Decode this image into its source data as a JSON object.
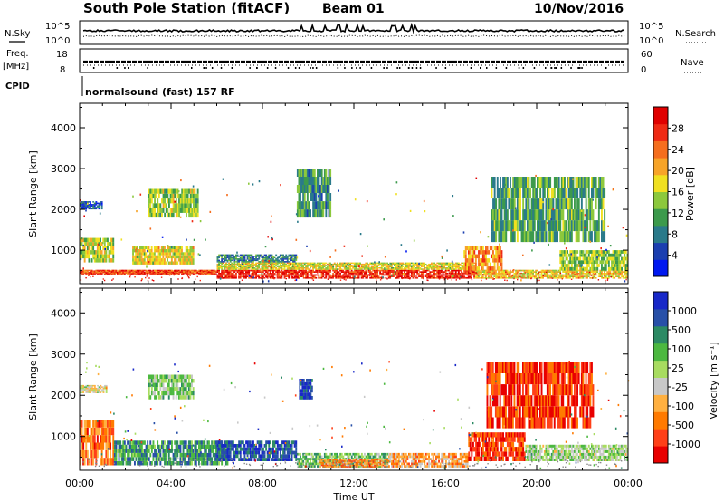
{
  "header": {
    "station": "South Pole Station (fitACF)",
    "beam": "Beam 01",
    "date": "10/Nov/2016"
  },
  "top_panels": {
    "nsky_label": "N.Sky",
    "nsearch_label": "N.Search",
    "freq_label_line1": "Freq.",
    "freq_label_line2": "[MHz]",
    "nave_label": "Nave",
    "cpid_label": "CPID",
    "noise_ticks": [
      "10^5",
      "10^0"
    ],
    "freq_ticks": [
      "18",
      "8"
    ],
    "nave_ticks": [
      "60",
      "0"
    ],
    "cpid_text": "normalsound (fast) 157 RF"
  },
  "colors": {
    "power_scale": [
      "#0018f0",
      "#1b3fb0",
      "#2a7a8a",
      "#3c9a4c",
      "#8cc83c",
      "#f0e020",
      "#f7a428",
      "#f56e1e",
      "#ef2a14",
      "#e00000"
    ],
    "velocity_scale": [
      "#e80000",
      "#ff4018",
      "#ff7a00",
      "#ffb040",
      "#c8c8c8",
      "#a8dc60",
      "#4cb840",
      "#2c8a64",
      "#2850a8",
      "#1828c8"
    ]
  },
  "chart_data": [
    {
      "type": "heatmap",
      "panel": "power",
      "ylabel": "Slant Range [km]",
      "xlabel": "",
      "ylim": [
        180,
        4600
      ],
      "yticks": [
        1000,
        2000,
        3000,
        4000
      ],
      "xlim": [
        "00:00",
        "24:00"
      ],
      "colorbar_label": "Power [dB]",
      "colorbar_ticks": [
        "4",
        "8",
        "12",
        "16",
        "20",
        "24",
        "28"
      ],
      "colorbar_range": [
        0,
        32
      ],
      "regions": [
        {
          "t0": 6.0,
          "t1": 17.3,
          "r0": 300,
          "r1": 520,
          "level": 0.92
        },
        {
          "t0": 0.0,
          "t1": 6.0,
          "r0": 420,
          "r1": 520,
          "level": 0.85
        },
        {
          "t0": 6.0,
          "t1": 17.3,
          "r0": 520,
          "r1": 700,
          "level": 0.55
        },
        {
          "t0": 6.0,
          "t1": 9.5,
          "r0": 700,
          "r1": 900,
          "level": 0.25
        },
        {
          "t0": 17.3,
          "t1": 24.0,
          "r0": 300,
          "r1": 520,
          "level": 0.6
        },
        {
          "t0": 0.0,
          "t1": 1.5,
          "r0": 700,
          "r1": 1300,
          "level": 0.5
        },
        {
          "t0": 0.0,
          "t1": 1.0,
          "r0": 2000,
          "r1": 2200,
          "level": 0.15
        },
        {
          "t0": 2.3,
          "t1": 5.0,
          "r0": 650,
          "r1": 1100,
          "level": 0.55
        },
        {
          "t0": 3.0,
          "t1": 5.2,
          "r0": 1800,
          "r1": 2500,
          "level": 0.45
        },
        {
          "t0": 16.8,
          "t1": 18.5,
          "r0": 500,
          "r1": 1100,
          "level": 0.7
        },
        {
          "t0": 18.0,
          "t1": 23.0,
          "r0": 1200,
          "r1": 2800,
          "level": 0.35
        },
        {
          "t0": 21.0,
          "t1": 24.0,
          "r0": 500,
          "r1": 1000,
          "level": 0.45
        },
        {
          "t0": 9.5,
          "t1": 11.0,
          "r0": 1800,
          "r1": 3000,
          "level": 0.3
        }
      ]
    },
    {
      "type": "heatmap",
      "panel": "velocity",
      "ylabel": "Slant Range [km]",
      "xlabel": "Time UT",
      "ylim": [
        180,
        4600
      ],
      "yticks": [
        1000,
        2000,
        3000,
        4000
      ],
      "xlim": [
        "00:00",
        "24:00"
      ],
      "xticks": [
        "00:00",
        "04:00",
        "08:00",
        "12:00",
        "16:00",
        "20:00",
        "00:00"
      ],
      "colorbar_label": "Velocity [m s⁻¹]",
      "colorbar_ticks": [
        "-1000",
        "-500",
        "-100",
        "-25",
        "25",
        "100",
        "500",
        "1000"
      ],
      "regions": [
        {
          "t0": 0.0,
          "t1": 1.5,
          "r0": 300,
          "r1": 1400,
          "level": 0.2
        },
        {
          "t0": 1.5,
          "t1": 6.5,
          "r0": 300,
          "r1": 900,
          "level": 0.75
        },
        {
          "t0": 6.0,
          "t1": 9.5,
          "r0": 400,
          "r1": 900,
          "level": 0.9
        },
        {
          "t0": 9.5,
          "t1": 13.5,
          "r0": 250,
          "r1": 600,
          "level": 0.65
        },
        {
          "t0": 13.5,
          "t1": 17.0,
          "r0": 250,
          "r1": 600,
          "level": 0.3
        },
        {
          "t0": 10.5,
          "t1": 13.5,
          "r0": 250,
          "r1": 450,
          "level": 0.25
        },
        {
          "t0": 17.0,
          "t1": 19.5,
          "r0": 400,
          "r1": 1100,
          "level": 0.1
        },
        {
          "t0": 19.5,
          "t1": 24.0,
          "r0": 400,
          "r1": 800,
          "level": 0.55
        },
        {
          "t0": 17.8,
          "t1": 22.5,
          "r0": 1200,
          "r1": 2800,
          "level": 0.1
        },
        {
          "t0": 3.0,
          "t1": 5.0,
          "r0": 1900,
          "r1": 2500,
          "level": 0.6
        },
        {
          "t0": 0.0,
          "t1": 1.2,
          "r0": 2050,
          "r1": 2250,
          "level": 0.45
        },
        {
          "t0": 9.6,
          "t1": 10.2,
          "r0": 1900,
          "r1": 2400,
          "level": 0.95
        }
      ]
    }
  ]
}
